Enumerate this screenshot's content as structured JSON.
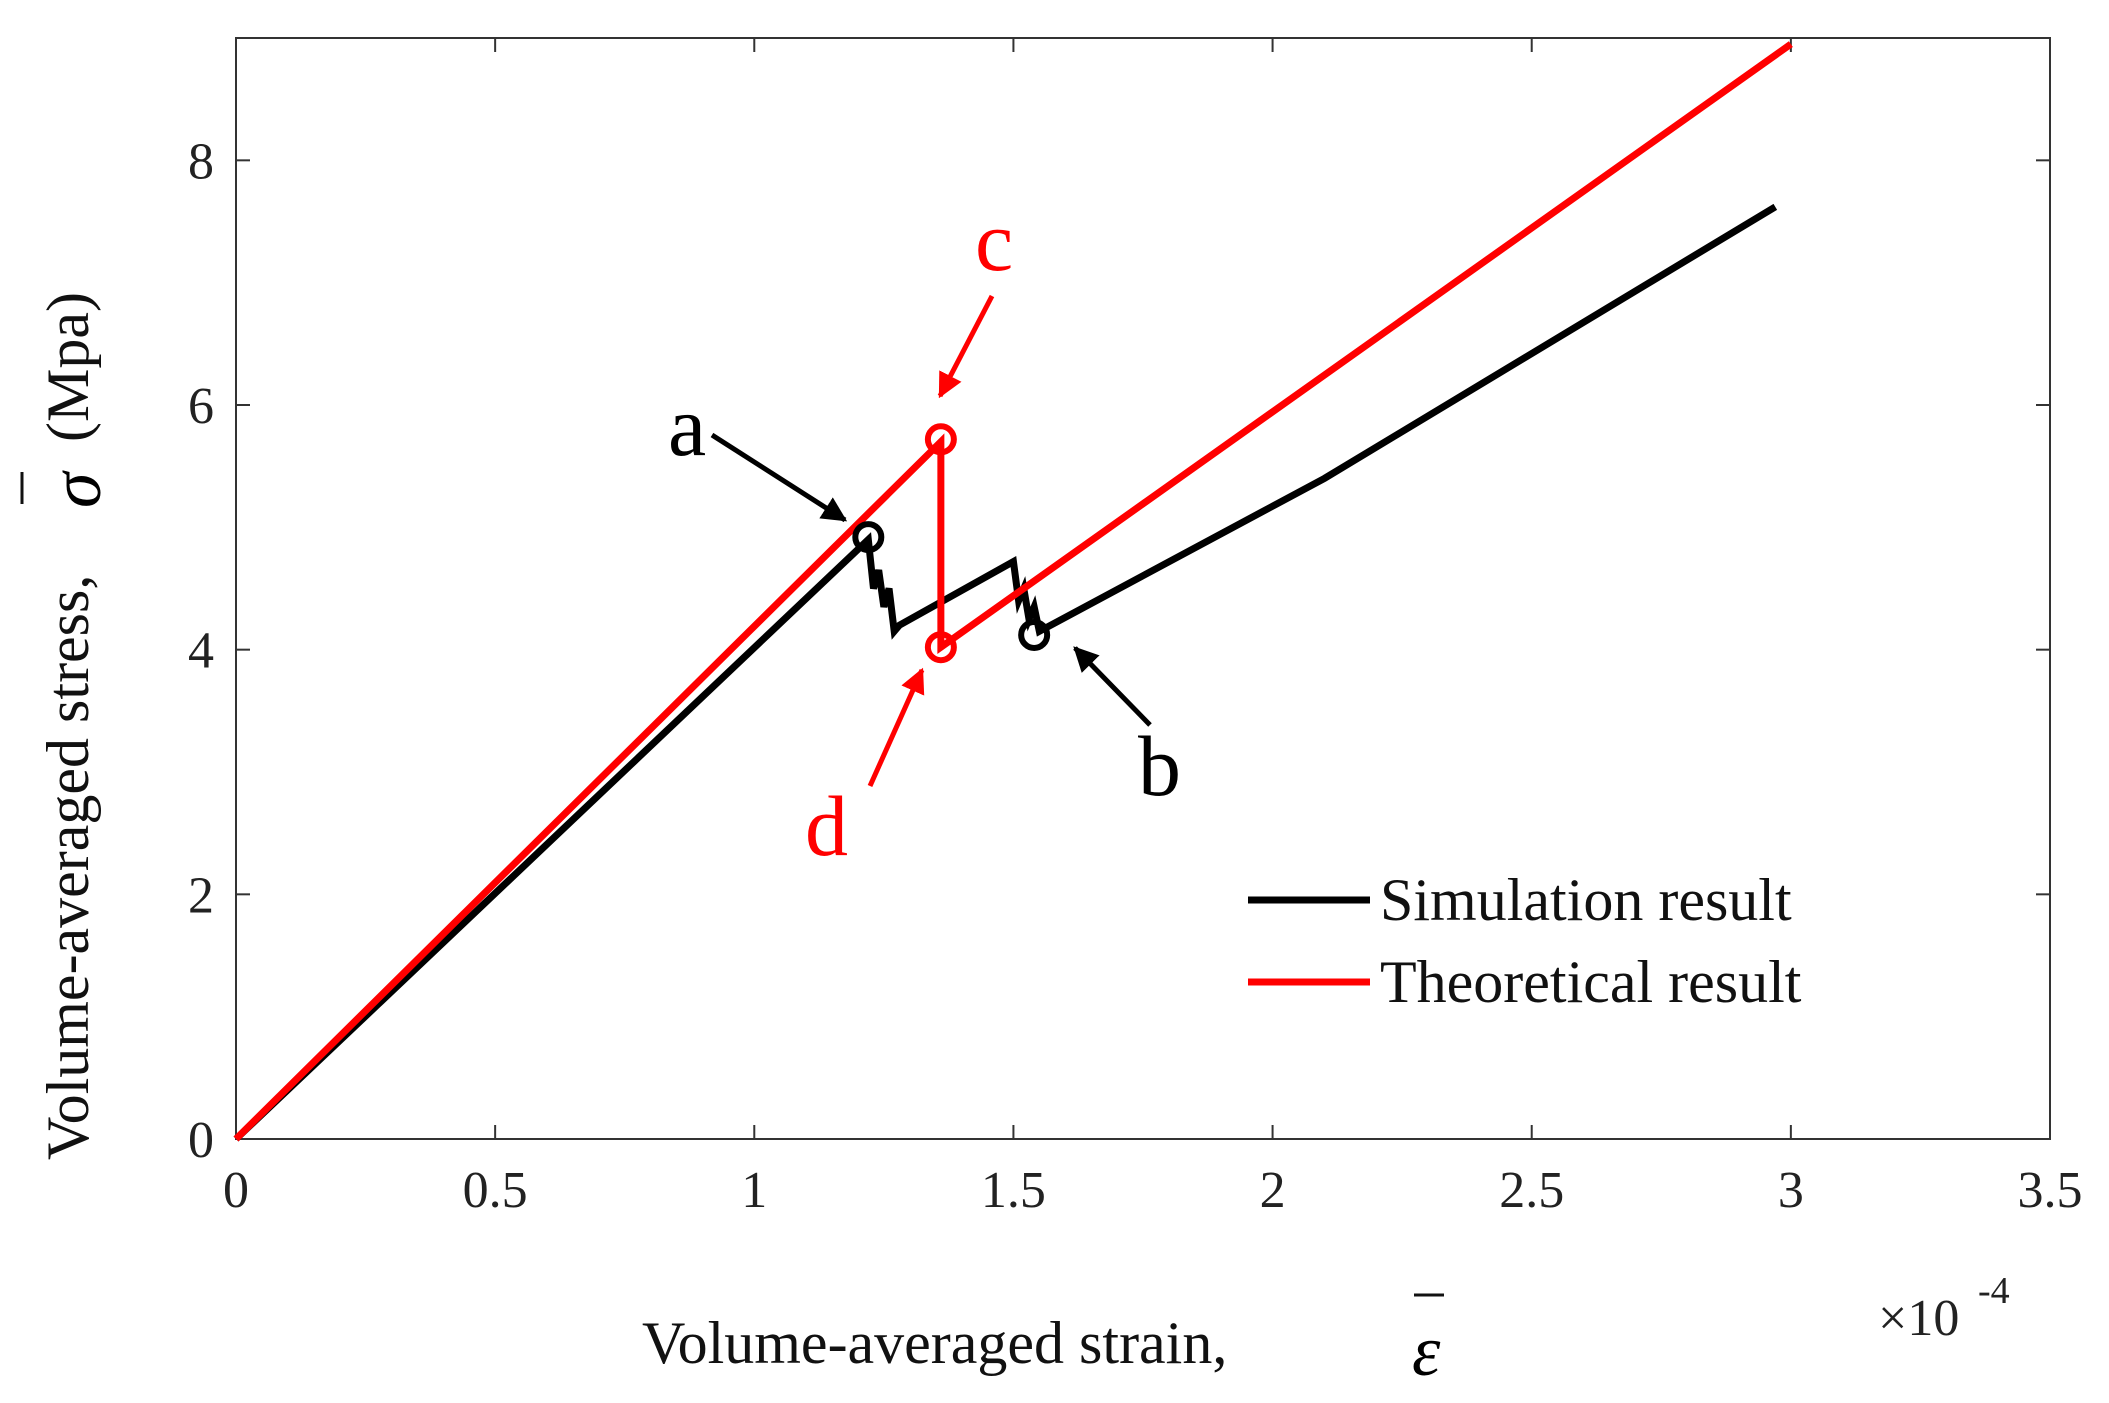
{
  "chart_data": {
    "type": "line",
    "title": "",
    "xlabel": "Volume-averaged strain,",
    "xlabel_symbol": "ε",
    "ylabel": "Volume-averaged stress,",
    "ylabel_symbol": "σ",
    "ylabel_unit": "(Mpa)",
    "x_multiplier": "×10",
    "x_multiplier_exp": "-4",
    "xlim": [
      0,
      3.5
    ],
    "ylim": [
      0,
      9
    ],
    "xticks": [
      0,
      0.5,
      1,
      1.5,
      2,
      2.5,
      3,
      3.5
    ],
    "xtick_labels": [
      "0",
      "0.5",
      "1",
      "1.5",
      "2",
      "2.5",
      "3",
      "3.5"
    ],
    "yticks": [
      0,
      2,
      4,
      6,
      8
    ],
    "ytick_labels": [
      "0",
      "2",
      "4",
      "6",
      "8"
    ],
    "grid": false,
    "legend_position": "lower-right",
    "series": [
      {
        "name": "Simulation result",
        "color": "#000000",
        "x": [
          0,
          1.22,
          1.23,
          1.24,
          1.25,
          1.26,
          1.27,
          1.28,
          1.5,
          1.51,
          1.52,
          1.53,
          1.54,
          1.55,
          2.1,
          2.97
        ],
        "y": [
          0,
          4.9,
          4.5,
          4.65,
          4.35,
          4.5,
          4.15,
          4.2,
          4.72,
          4.4,
          4.5,
          4.25,
          4.35,
          4.15,
          5.4,
          7.62
        ]
      },
      {
        "name": "Theoretical result",
        "color": "#ff0000",
        "x": [
          0,
          1.36,
          1.36,
          3.0
        ],
        "y": [
          0,
          5.7,
          4.02,
          8.95
        ]
      }
    ],
    "annotations": [
      {
        "label": "a",
        "color": "#000000",
        "x": 1.22,
        "y": 4.92
      },
      {
        "label": "b",
        "color": "#000000",
        "x": 1.54,
        "y": 4.12
      },
      {
        "label": "c",
        "color": "#ff0000",
        "x": 1.36,
        "y": 5.72
      },
      {
        "label": "d",
        "color": "#ff0000",
        "x": 1.36,
        "y": 4.02
      }
    ]
  }
}
